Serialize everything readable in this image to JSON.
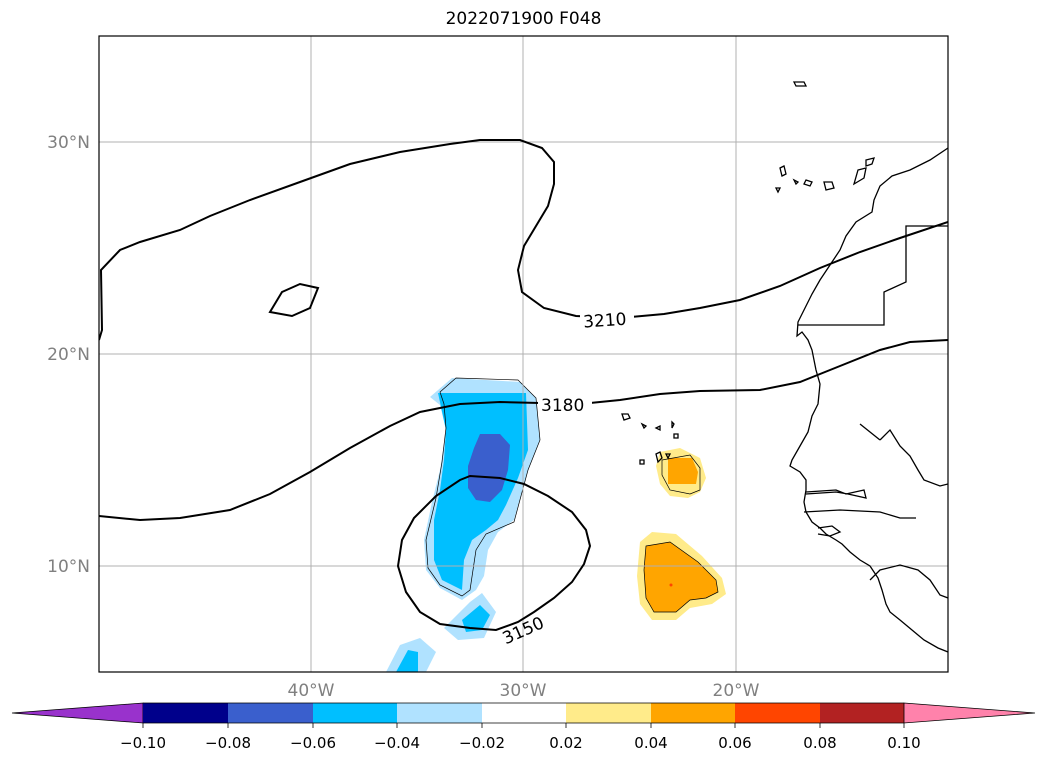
{
  "title": "2022071900 F048",
  "lat_ticks": [
    "30°N",
    "20°N",
    "10°N"
  ],
  "lon_ticks": [
    "40°W",
    "30°W",
    "20°W"
  ],
  "contour_labels": [
    "3210",
    "3180",
    "3150"
  ],
  "colorbar": {
    "ticks": [
      "−0.10",
      "−0.08",
      "−0.06",
      "−0.04",
      "−0.02",
      "0.02",
      "0.04",
      "0.06",
      "0.08",
      "0.10"
    ],
    "colors": [
      "#9932cc",
      "#00008b",
      "#3a5fcd",
      "#00bfff",
      "#b0e2ff",
      "#ffffff",
      "#ffeb8a",
      "#ffa500",
      "#ff4500",
      "#b22222",
      "#ff82ab"
    ]
  }
}
